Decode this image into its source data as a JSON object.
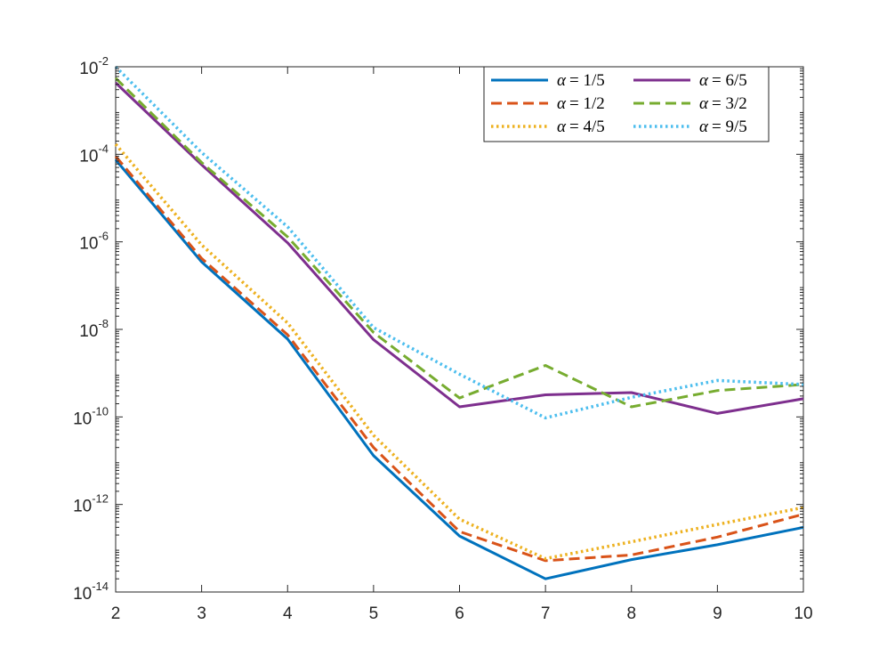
{
  "chart_data": {
    "type": "line",
    "title": "",
    "xlabel": "",
    "ylabel": "",
    "xlim": [
      2,
      10
    ],
    "ylim": [
      1e-14,
      0.01
    ],
    "yscale": "log",
    "x": [
      2,
      3,
      4,
      5,
      6,
      7,
      8,
      9,
      10
    ],
    "x_ticks": [
      2,
      3,
      4,
      5,
      6,
      7,
      8,
      9,
      10
    ],
    "y_ticks": [
      {
        "value": 1e-14,
        "exp": "-14"
      },
      {
        "value": 1e-12,
        "exp": "-12"
      },
      {
        "value": 1e-10,
        "exp": "-10"
      },
      {
        "value": 1e-08,
        "exp": "-8"
      },
      {
        "value": 1e-06,
        "exp": "-6"
      },
      {
        "value": 0.0001,
        "exp": "-4"
      },
      {
        "value": 0.01,
        "exp": "-2"
      }
    ],
    "tick_base": "10",
    "grid": false,
    "legend_position": "top-right",
    "series": [
      {
        "name": "α = 1/5",
        "symbol": "α",
        "rhs": "= 1/5",
        "color": "#0072BD",
        "style": "solid",
        "values": [
          7.5e-05,
          3.5e-07,
          6e-09,
          1.3e-11,
          1.9e-13,
          2e-14,
          5.5e-14,
          1.2e-13,
          3e-13
        ]
      },
      {
        "name": "α = 1/2",
        "symbol": "α",
        "rhs": "= 1/2",
        "color": "#D95319",
        "style": "dashed",
        "values": [
          9e-05,
          4.2e-07,
          7.5e-09,
          2e-11,
          2.4e-13,
          5.2e-14,
          7e-14,
          1.8e-13,
          6e-13
        ]
      },
      {
        "name": "α = 4/5",
        "symbol": "α",
        "rhs": "= 4/5",
        "color": "#EDB120",
        "style": "dotted",
        "values": [
          0.00017,
          8.5e-07,
          1.4e-08,
          3.8e-11,
          4.6e-13,
          5.8e-14,
          1.4e-13,
          3.5e-13,
          8.5e-13
        ]
      },
      {
        "name": "α = 6/5",
        "symbol": "α",
        "rhs": "= 6/5",
        "color": "#7E2F8E",
        "style": "solid",
        "values": [
          0.0043,
          5.8e-05,
          9.5e-07,
          5.8e-09,
          1.7e-10,
          3.2e-10,
          3.6e-10,
          1.2e-10,
          2.6e-10
        ]
      },
      {
        "name": "α = 3/2",
        "symbol": "α",
        "rhs": "= 3/2",
        "color": "#77AC30",
        "style": "dashed",
        "values": [
          0.0055,
          6.5e-05,
          1.3e-06,
          8.5e-09,
          2.7e-10,
          1.5e-09,
          1.7e-10,
          4e-10,
          5.5e-10
        ]
      },
      {
        "name": "α = 9/5",
        "symbol": "α",
        "rhs": "= 9/5",
        "color": "#4DBEEE",
        "style": "dotted",
        "values": [
          0.01,
          0.00011,
          2.2e-06,
          1.1e-08,
          9.5e-10,
          9.5e-11,
          2.8e-10,
          6.8e-10,
          5.5e-10
        ]
      }
    ]
  }
}
